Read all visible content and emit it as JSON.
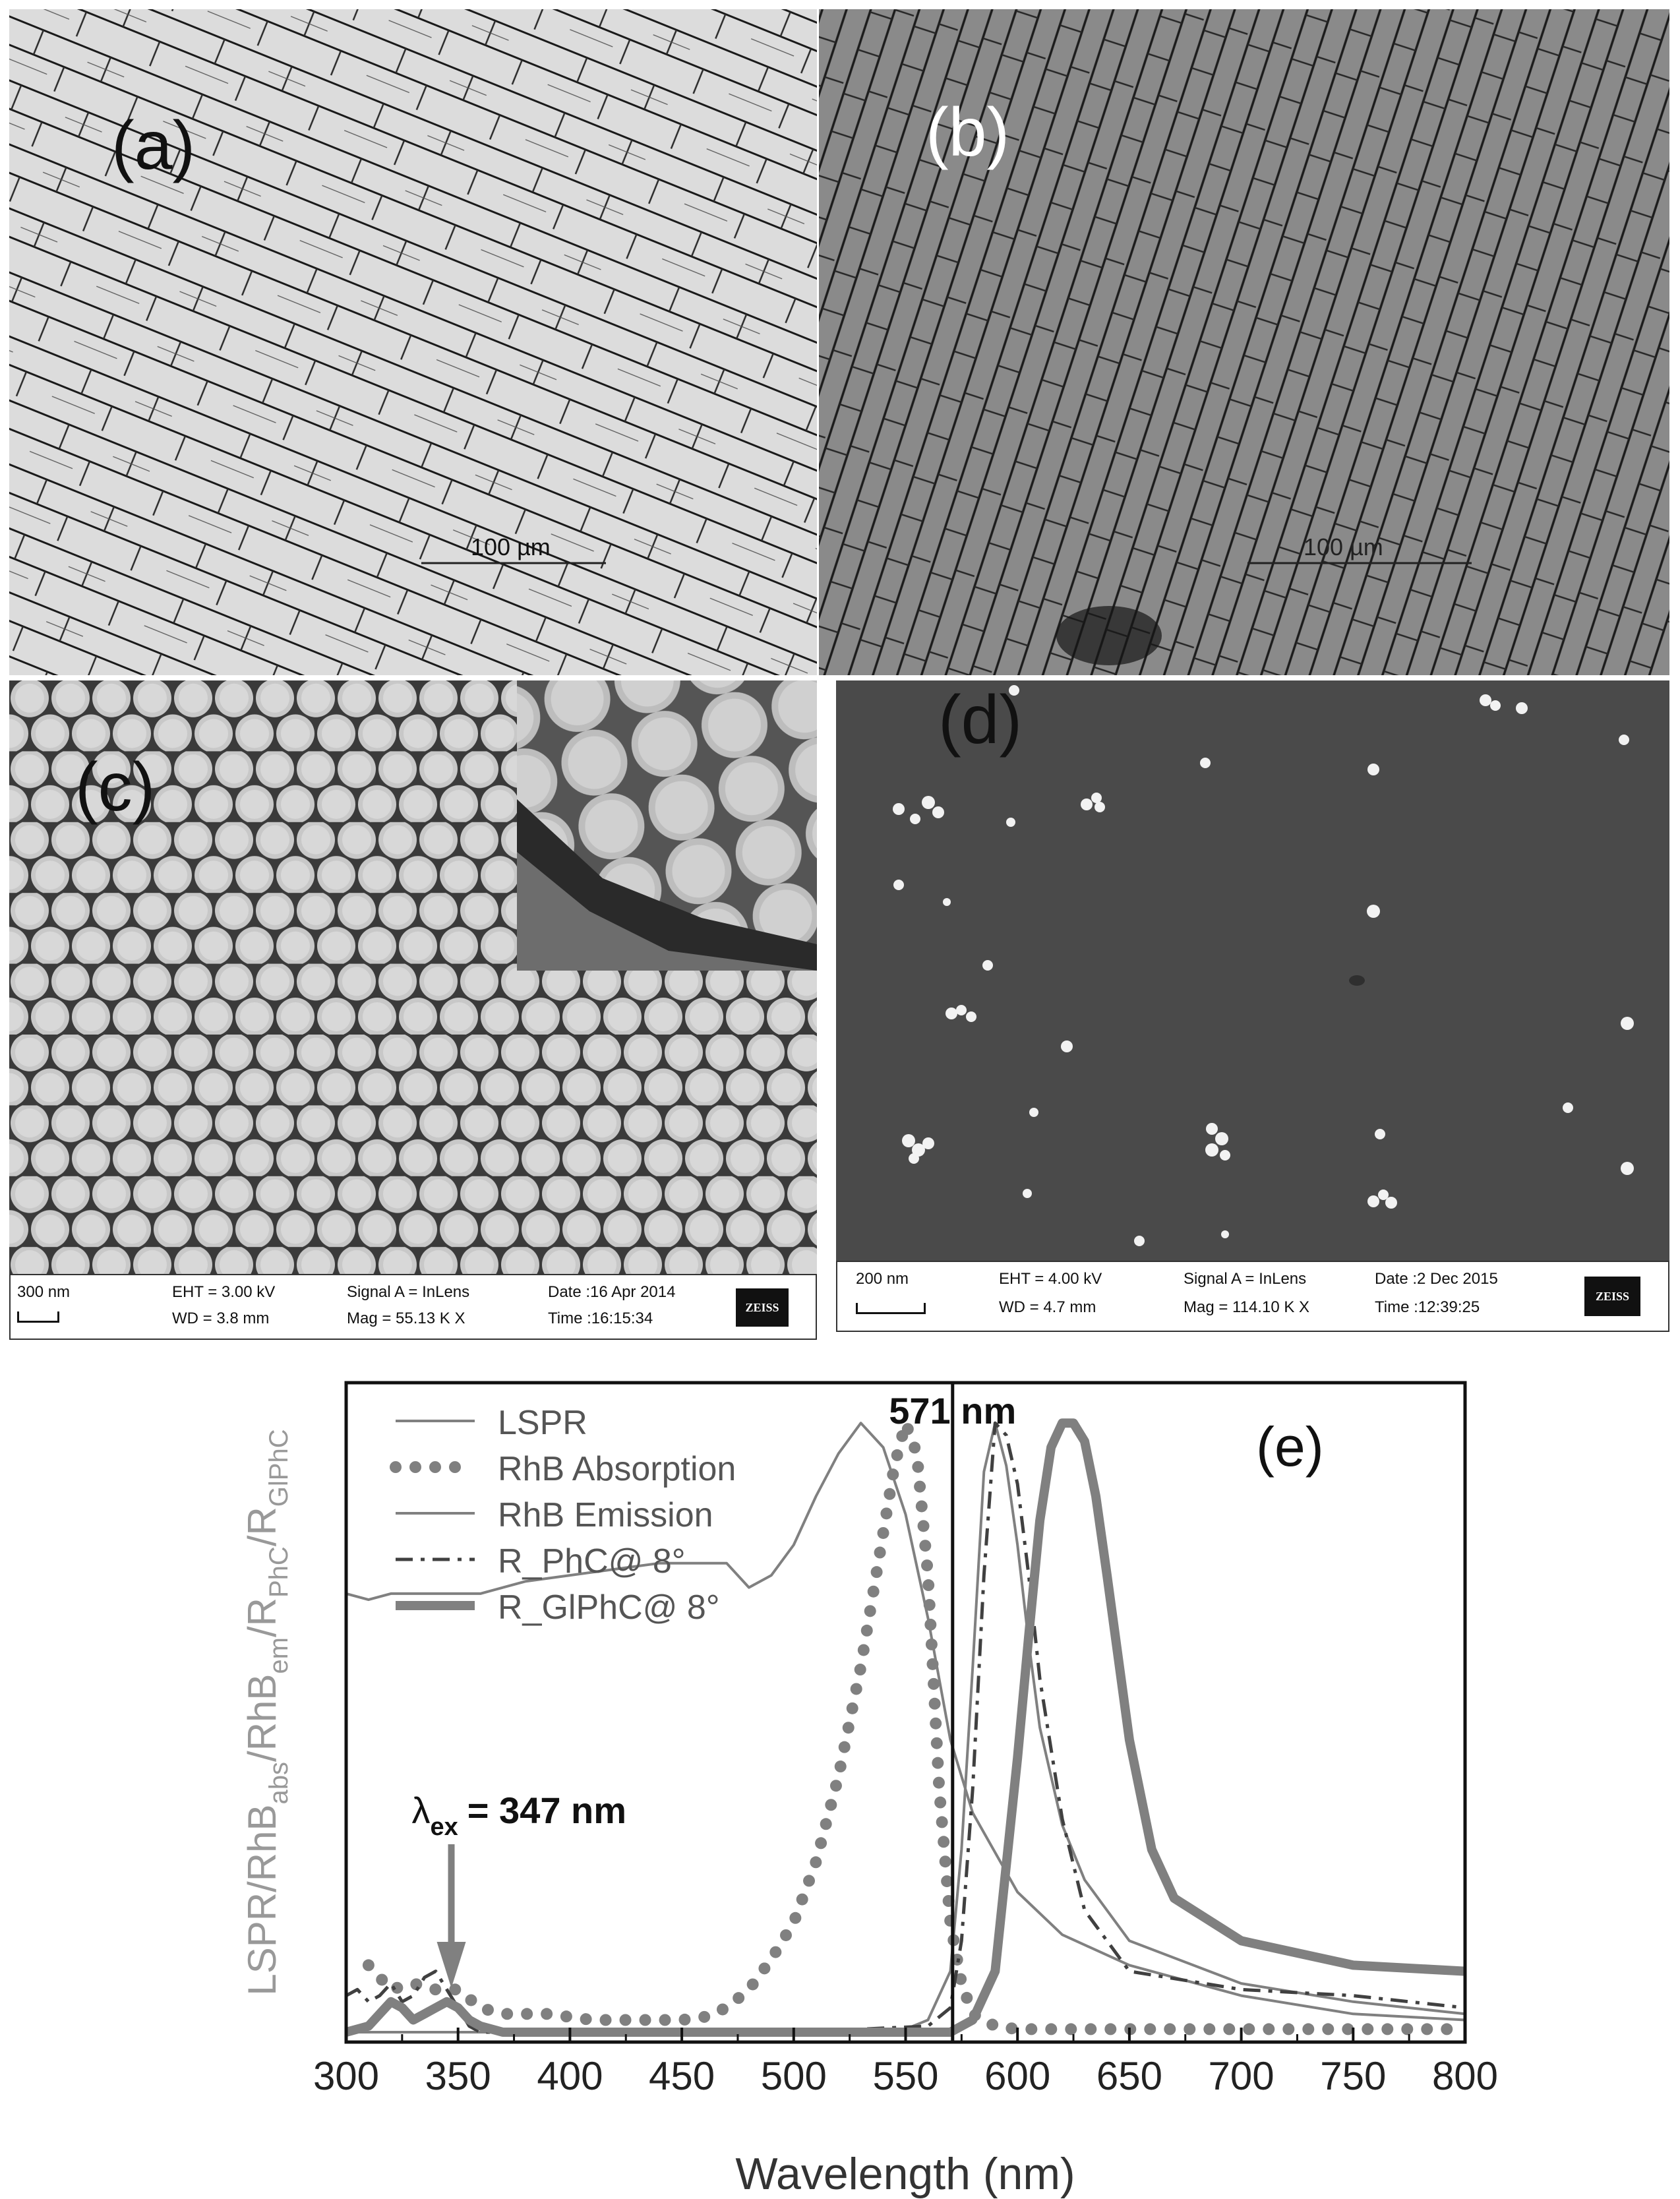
{
  "panels": {
    "a": {
      "label": "(a)",
      "scale": "100 µm"
    },
    "b": {
      "label": "(b)",
      "scale": "100 µm"
    },
    "c": {
      "label": "(c)",
      "info": {
        "scale": "300 nm",
        "eht": "EHT = 3.00 kV",
        "wd": "WD = 3.8 mm",
        "signal": "Signal A = InLens",
        "mag": "Mag = 55.13 K X",
        "date": "Date :16 Apr 2014",
        "time": "Time :16:15:34",
        "logo": "ZEISS"
      }
    },
    "d": {
      "label": "(d)",
      "info": {
        "scale": "200 nm",
        "eht": "EHT = 4.00 kV",
        "wd": "WD = 4.7 mm",
        "signal": "Signal A = InLens",
        "mag": "Mag = 114.10 K X",
        "date": "Date :2 Dec 2015",
        "time": "Time :12:39:25",
        "logo": "ZEISS"
      }
    },
    "e": {
      "label": "(e)"
    }
  },
  "chart_data": {
    "type": "line",
    "xlabel": "Wavelength (nm)",
    "ylabel": "LSPR/RhB_abs/RhB_em/R_PhC/R_GlPhC",
    "xlim": [
      300,
      800
    ],
    "ylim": [
      0,
      1.05
    ],
    "xticks": [
      300,
      350,
      400,
      450,
      500,
      550,
      600,
      650,
      700,
      750,
      800
    ],
    "yticks_shown": false,
    "legend_position": "top-left",
    "annotations": [
      {
        "text": "571 nm",
        "x": 571
      },
      {
        "text": "λ",
        "sub": "ex",
        "rest": "= 347 nm",
        "x": 347
      }
    ],
    "vline": 571,
    "colors": {
      "grey": "#808080",
      "dark": "#404040"
    },
    "series": [
      {
        "name": "LSPR",
        "style": "solid-thin",
        "x": [
          300,
          310,
          320,
          330,
          340,
          350,
          360,
          380,
          400,
          420,
          440,
          460,
          470,
          480,
          490,
          500,
          510,
          520,
          530,
          540,
          550,
          560,
          570,
          580,
          600,
          620,
          650,
          700,
          750,
          800
        ],
        "y": [
          0.72,
          0.71,
          0.72,
          0.72,
          0.72,
          0.72,
          0.72,
          0.74,
          0.75,
          0.76,
          0.77,
          0.77,
          0.77,
          0.73,
          0.75,
          0.8,
          0.88,
          0.95,
          1.0,
          0.96,
          0.85,
          0.68,
          0.48,
          0.36,
          0.23,
          0.16,
          0.11,
          0.06,
          0.03,
          0.02
        ]
      },
      {
        "name": "RhB Absorption",
        "style": "dotted",
        "x": [
          310,
          320,
          330,
          340,
          350,
          360,
          370,
          380,
          390,
          400,
          410,
          420,
          430,
          440,
          450,
          460,
          470,
          480,
          490,
          500,
          510,
          520,
          530,
          540,
          545,
          550,
          555,
          560,
          565,
          570,
          575,
          580,
          590,
          600,
          650,
          700,
          750,
          800
        ],
        "y": [
          0.11,
          0.07,
          0.08,
          0.07,
          0.07,
          0.04,
          0.03,
          0.03,
          0.03,
          0.025,
          0.02,
          0.02,
          0.02,
          0.02,
          0.02,
          0.025,
          0.04,
          0.07,
          0.12,
          0.18,
          0.28,
          0.42,
          0.6,
          0.82,
          0.93,
          1.0,
          0.95,
          0.75,
          0.4,
          0.18,
          0.08,
          0.03,
          0.01,
          0.005,
          0.005,
          0.005,
          0.005,
          0.005
        ]
      },
      {
        "name": "RhB Emission",
        "style": "solid-thin",
        "x": [
          300,
          400,
          500,
          550,
          560,
          570,
          575,
          580,
          585,
          590,
          595,
          600,
          605,
          610,
          620,
          630,
          650,
          700,
          750,
          800
        ],
        "y": [
          0,
          0,
          0,
          0.005,
          0.02,
          0.1,
          0.3,
          0.6,
          0.92,
          1.0,
          0.93,
          0.8,
          0.64,
          0.5,
          0.34,
          0.25,
          0.15,
          0.08,
          0.05,
          0.03
        ]
      },
      {
        "name": "R_PhC@ 8°",
        "style": "dash-dot",
        "x": [
          300,
          305,
          310,
          315,
          320,
          325,
          330,
          335,
          340,
          345,
          350,
          355,
          360,
          370,
          400,
          500,
          560,
          570,
          575,
          580,
          585,
          590,
          595,
          600,
          605,
          610,
          620,
          630,
          650,
          700,
          750,
          800
        ],
        "y": [
          0.06,
          0.07,
          0.05,
          0.06,
          0.08,
          0.05,
          0.06,
          0.09,
          0.1,
          0.07,
          0.04,
          0.01,
          0,
          0,
          0,
          0,
          0.01,
          0.04,
          0.15,
          0.4,
          0.75,
          1.0,
          0.98,
          0.9,
          0.75,
          0.58,
          0.35,
          0.2,
          0.1,
          0.07,
          0.06,
          0.04
        ]
      },
      {
        "name": "R_GlPhC@ 8°",
        "style": "solid-thick",
        "x": [
          300,
          310,
          315,
          320,
          325,
          330,
          335,
          340,
          345,
          350,
          355,
          360,
          370,
          400,
          500,
          570,
          580,
          590,
          600,
          605,
          610,
          615,
          620,
          625,
          630,
          635,
          640,
          650,
          660,
          670,
          700,
          750,
          800
        ],
        "y": [
          0,
          0.01,
          0.03,
          0.05,
          0.04,
          0.02,
          0.03,
          0.04,
          0.05,
          0.04,
          0.02,
          0.01,
          0,
          0,
          0,
          0,
          0.02,
          0.1,
          0.45,
          0.65,
          0.84,
          0.96,
          1.0,
          1.0,
          0.97,
          0.88,
          0.75,
          0.48,
          0.3,
          0.22,
          0.15,
          0.11,
          0.1
        ]
      }
    ]
  }
}
